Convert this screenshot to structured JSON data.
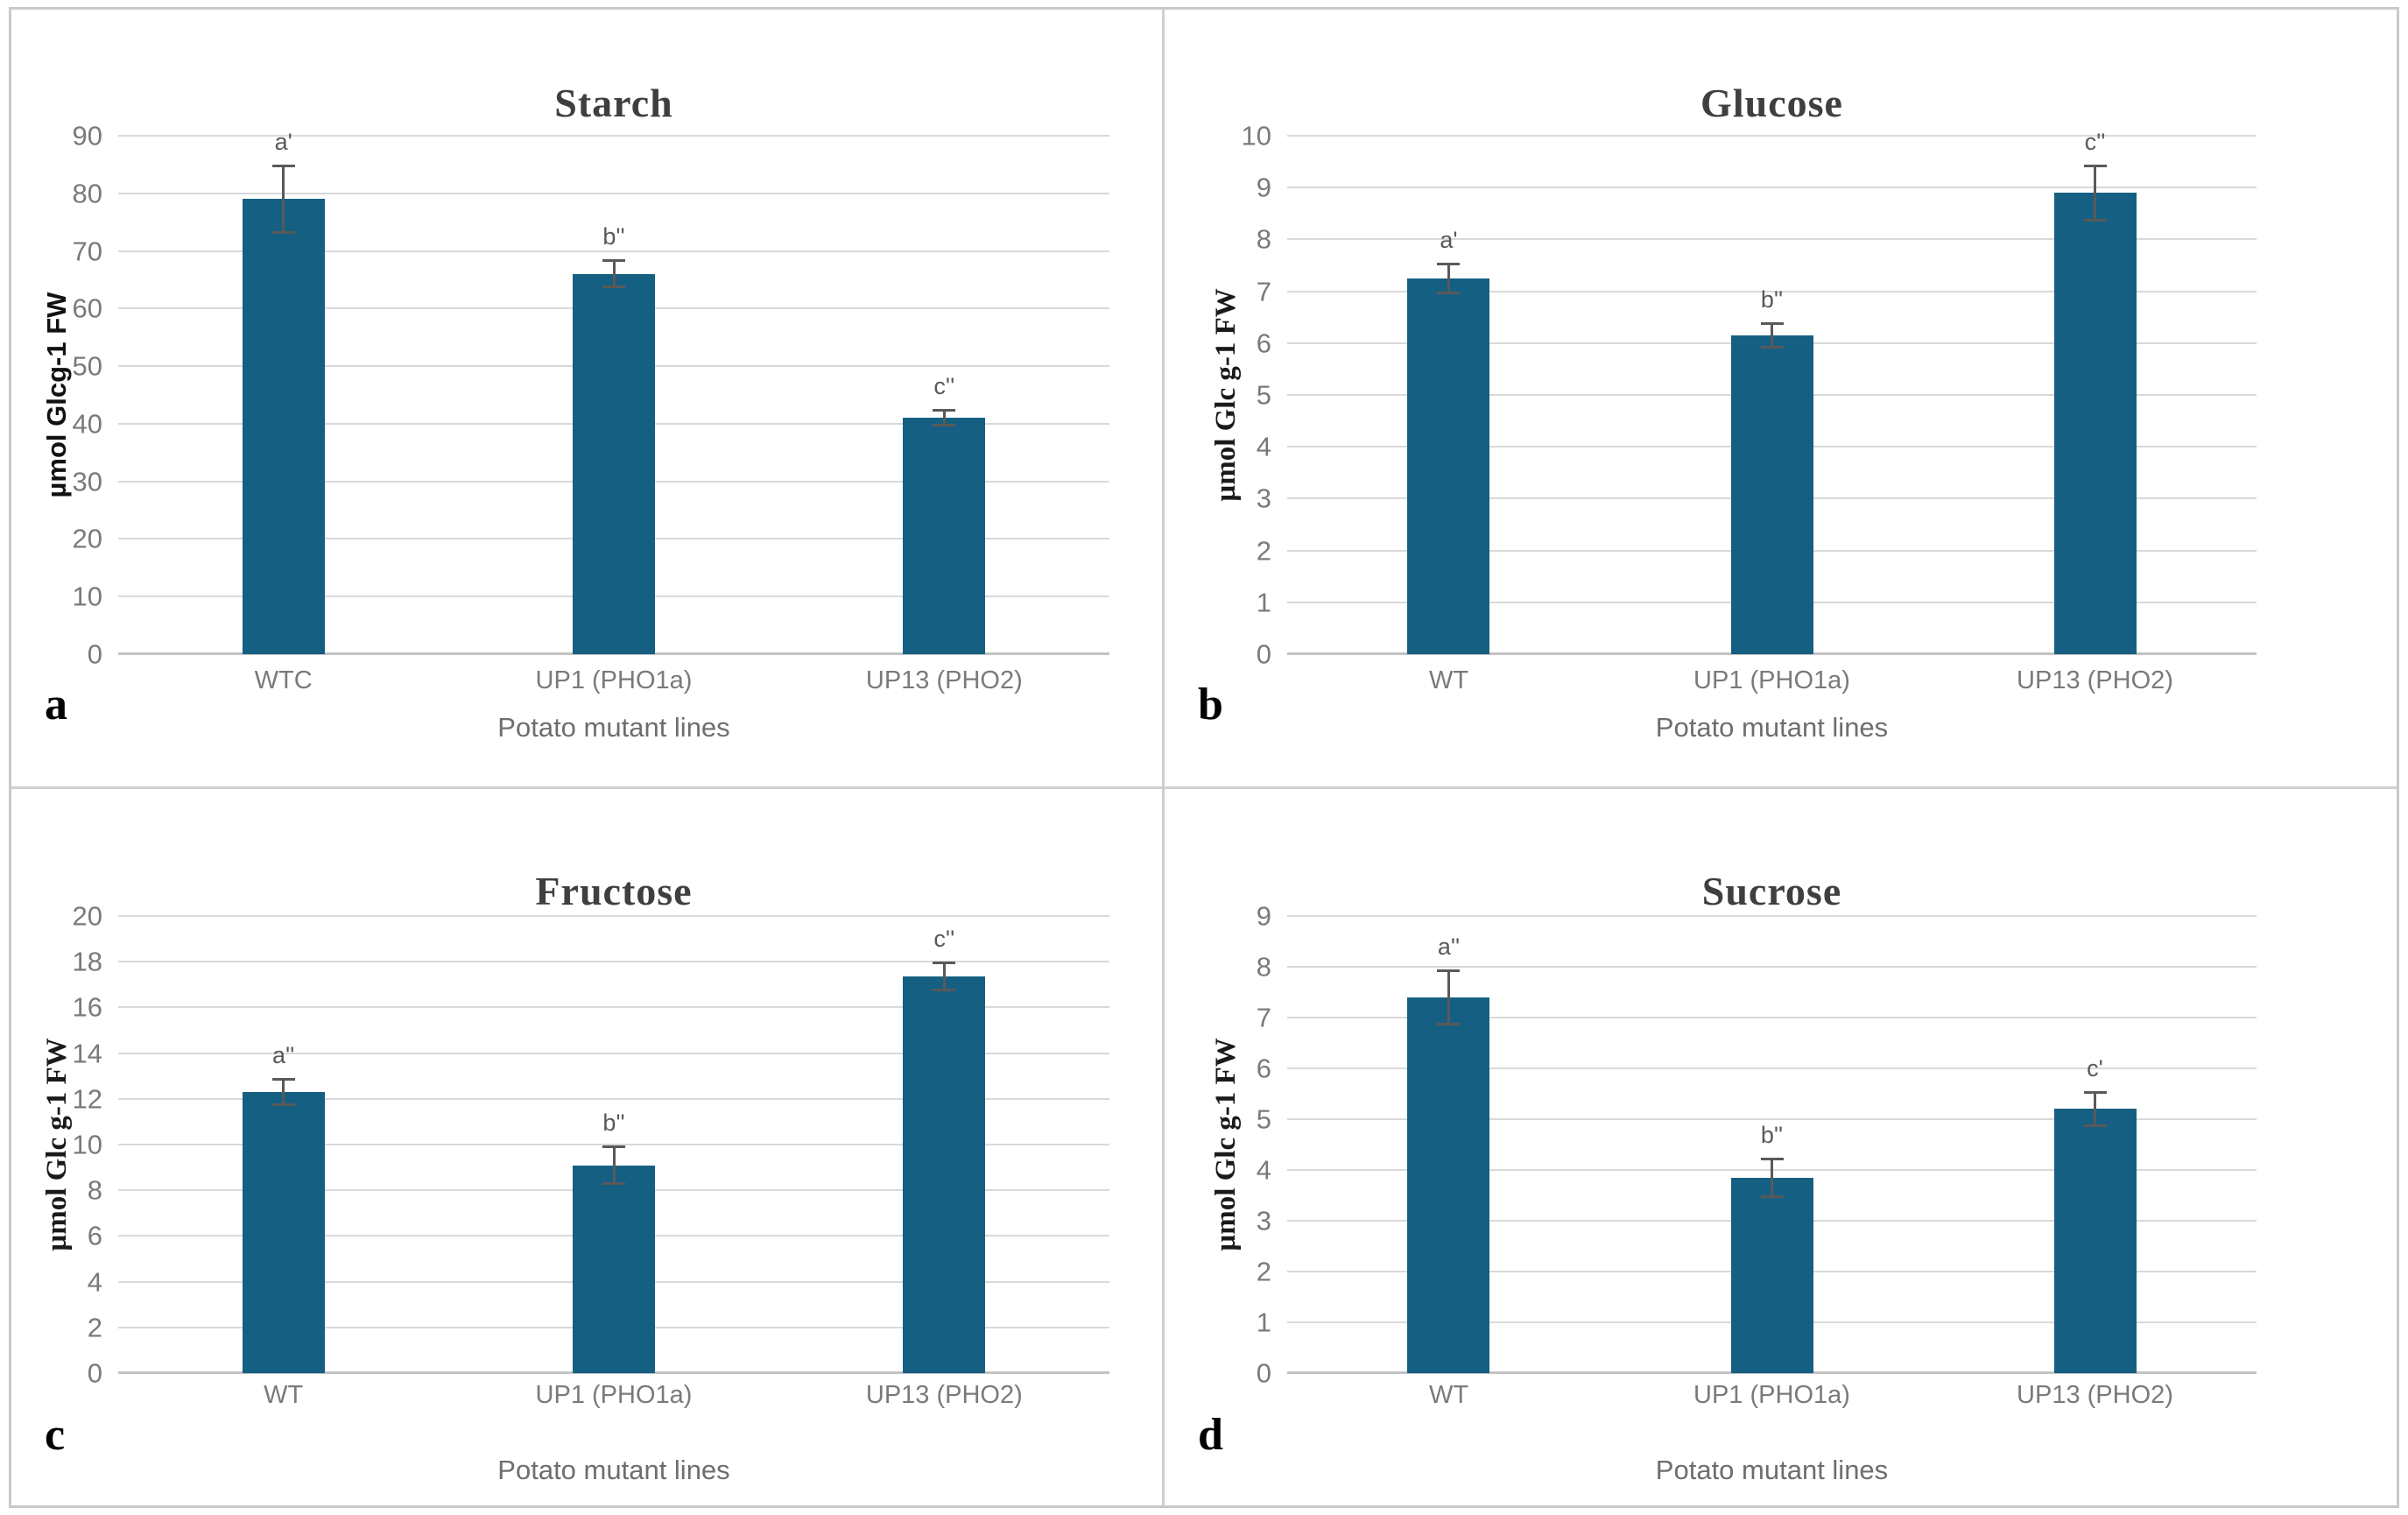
{
  "figure": {
    "x_axis_title": "Potato mutant lines",
    "bar_color": "#156082",
    "gridline_color": "#d9d9d9",
    "error_bar_color": "#595959",
    "title_color": "#3f3f3f",
    "tick_label_color": "#7a7a7a"
  },
  "chart_data": [
    {
      "type": "bar",
      "panel_letter": "a",
      "title": "Starch",
      "ylabel": "µmol Glcg-1 FW",
      "xlabel": "Potato mutant lines",
      "ylim": [
        0,
        90
      ],
      "ytick_step": 10,
      "grid": true,
      "legend": "none",
      "categories": [
        "WTC",
        "UP1 (PHO1a)",
        "UP13 (PHO2)"
      ],
      "values": [
        79,
        66,
        41
      ],
      "errors": [
        6,
        2.5,
        1.5
      ],
      "sig_letters": [
        "a'",
        "b''",
        "c''"
      ]
    },
    {
      "type": "bar",
      "panel_letter": "b",
      "title": "Glucose",
      "ylabel": "µmol Glc g-1 FW",
      "xlabel": "Potato mutant lines",
      "ylim": [
        0,
        10
      ],
      "ytick_step": 1,
      "grid": true,
      "legend": "none",
      "categories": [
        "WT",
        "UP1 (PHO1a)",
        "UP13 (PHO2)"
      ],
      "values": [
        7.25,
        6.15,
        8.9
      ],
      "errors": [
        0.3,
        0.25,
        0.55
      ],
      "sig_letters": [
        "a'",
        "b''",
        "c''"
      ]
    },
    {
      "type": "bar",
      "panel_letter": "c",
      "title": "Fructose",
      "ylabel": "µmol Glc g-1 FW",
      "xlabel": "Potato mutant lines",
      "ylim": [
        0,
        20
      ],
      "ytick_step": 2,
      "grid": true,
      "legend": "none",
      "categories": [
        "WT",
        "UP1 (PHO1a)",
        "UP13 (PHO2)"
      ],
      "values": [
        12.3,
        9.1,
        17.35
      ],
      "errors": [
        0.6,
        0.85,
        0.65
      ],
      "sig_letters": [
        "a''",
        "b''",
        "c''"
      ]
    },
    {
      "type": "bar",
      "panel_letter": "d",
      "title": "Sucrose",
      "ylabel": "µmol Glc g-1 FW",
      "xlabel": "Potato mutant lines",
      "ylim": [
        0,
        9
      ],
      "ytick_step": 1,
      "grid": true,
      "legend": "none",
      "categories": [
        "WT",
        "UP1 (PHO1a)",
        "UP13 (PHO2)"
      ],
      "values": [
        7.4,
        3.85,
        5.2
      ],
      "errors": [
        0.55,
        0.4,
        0.35
      ],
      "sig_letters": [
        "a''",
        "b''",
        "c'"
      ]
    }
  ]
}
